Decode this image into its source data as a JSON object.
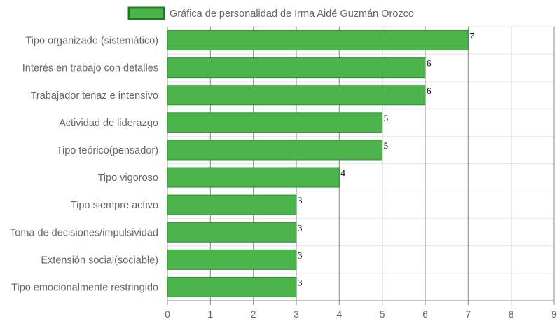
{
  "chart_data": {
    "type": "bar",
    "orientation": "horizontal",
    "categories": [
      "Tipo organizado (sistemático)",
      "Interés en trabajo con detalles",
      "Trabajador tenaz e intensivo",
      "Actividad de liderazgo",
      "Tipo teórico(pensador)",
      "Tipo vigoroso",
      "Tipo siempre activo",
      "Toma de decisiones/impulsividad",
      "Extensión social(sociable)",
      "Tipo emocionalmente restringido"
    ],
    "series": [
      {
        "name": "Gráfica de personalidad de Irma Aidé Guzmán Orozco",
        "values": [
          7,
          6,
          6,
          5,
          5,
          4,
          3,
          3,
          3,
          3
        ],
        "color": "#4bb54b",
        "border_color": "#2e8b2e"
      }
    ],
    "xlim": [
      0,
      9
    ],
    "x_ticks": [
      "0",
      "1",
      "2",
      "3",
      "4",
      "5",
      "6",
      "7",
      "8",
      "9"
    ],
    "grid": true,
    "legend": "top-center",
    "data_labels": true
  }
}
